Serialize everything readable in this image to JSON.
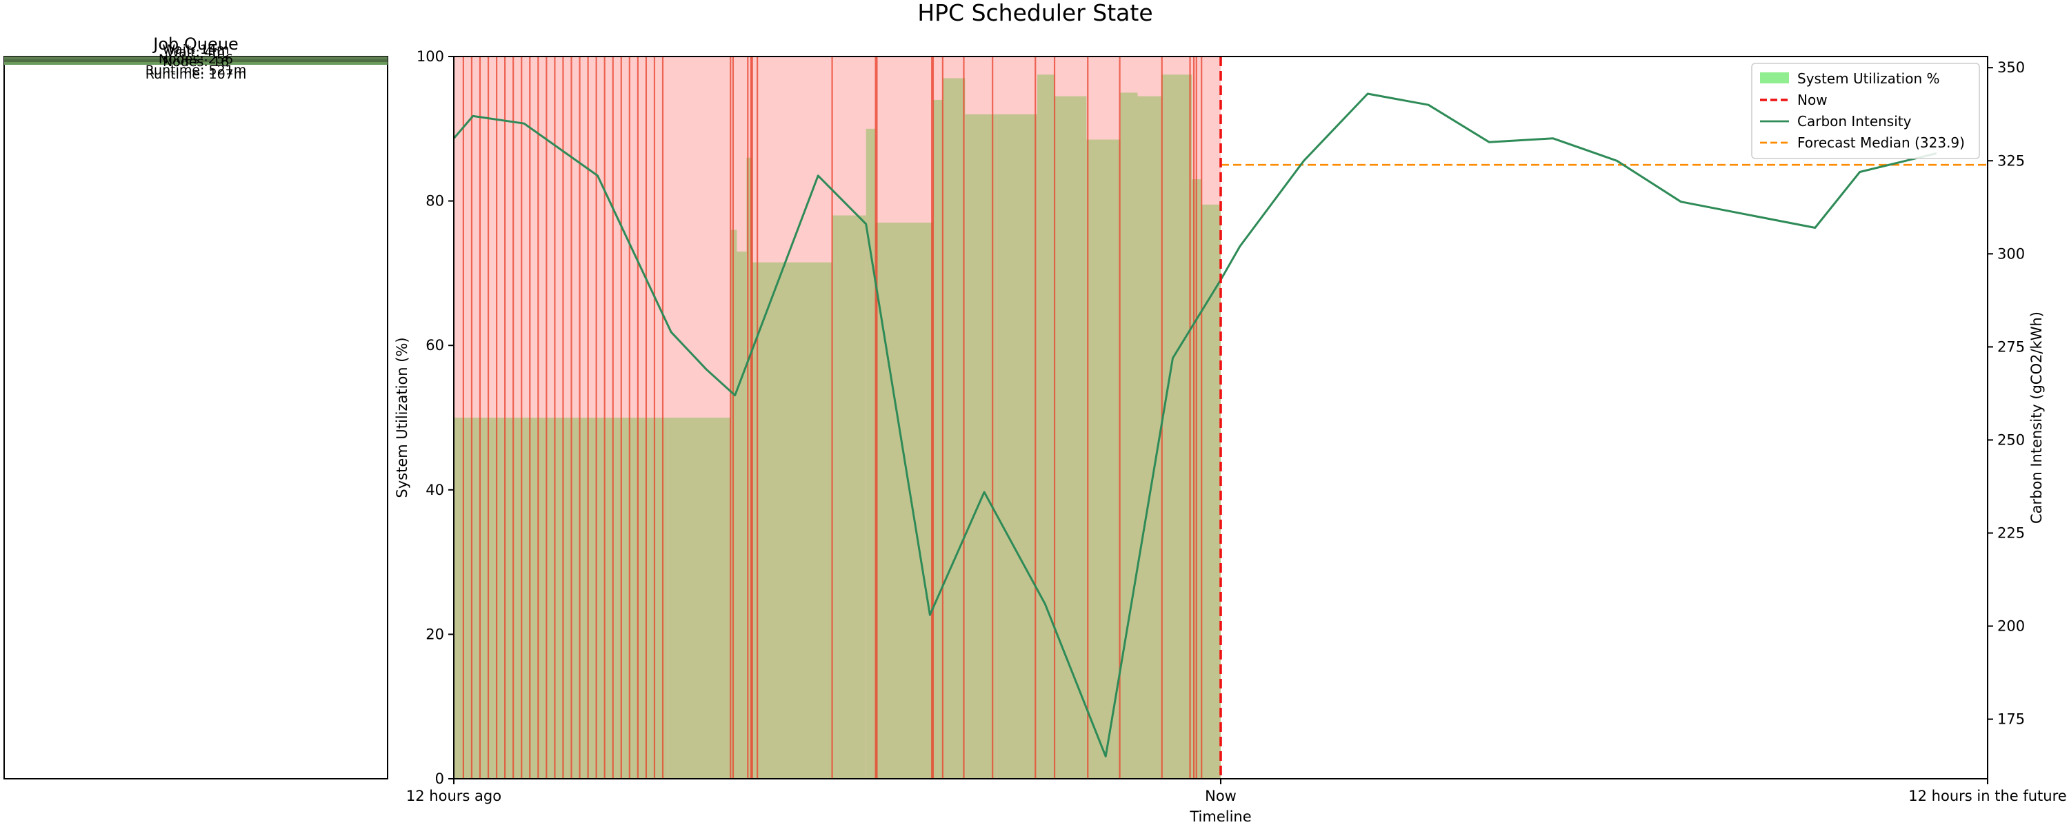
{
  "figure_title": "HPC Scheduler State",
  "queue_panel": {
    "title": "Job Queue",
    "overlapping_labels": [
      "Wait: 14m",
      "Wait: 4m",
      "Nodes: 256",
      "Nodes: 16",
      "Runtime: 521m",
      "Runtime: 107m"
    ],
    "bars": [
      {
        "color": "#5f7f52"
      },
      {
        "color": "#4f6d44"
      },
      {
        "color": "#6a9a5c"
      }
    ]
  },
  "chart_data": {
    "type": "area",
    "title": "HPC Scheduler State",
    "xlabel": "Timeline",
    "x_ticks": [
      {
        "label": "12 hours ago",
        "hours": -12
      },
      {
        "label": "Now",
        "hours": 0
      },
      {
        "label": "12 hours in the future",
        "hours": 12
      }
    ],
    "xlim_hours": [
      -12,
      12
    ],
    "y_left": {
      "label": "System Utilization (%)",
      "range": [
        0,
        100
      ],
      "ticks": [
        0,
        20,
        40,
        60,
        80,
        100
      ],
      "color": "#1a7a1a"
    },
    "y_right": {
      "label": "Carbon Intensity (gCO2/kWh)",
      "range": [
        159,
        353
      ],
      "ticks": [
        175,
        200,
        225,
        250,
        275,
        300,
        325,
        350
      ],
      "color": "#2e8b57"
    },
    "legend": {
      "position": "top-right",
      "entries": [
        {
          "label": "System Utilization %",
          "swatch": "patch",
          "color": "#90ee90"
        },
        {
          "label": "Now",
          "swatch": "dashed-line",
          "color": "#ee1111"
        },
        {
          "label": "Carbon Intensity",
          "swatch": "line",
          "color": "#2e8b57"
        },
        {
          "label": "Forecast Median (323.9)",
          "swatch": "dashed-line",
          "color": "#ff8c00"
        }
      ]
    },
    "now_line": {
      "x_hours": 0,
      "color": "#ee1111"
    },
    "forecast_median": {
      "value": 323.9,
      "x_range_hours": [
        0,
        12
      ],
      "color": "#ff8c00"
    },
    "utilization_segments": [
      {
        "start": -12.0,
        "end": -8.65,
        "value": 50
      },
      {
        "start": -8.65,
        "end": -7.67,
        "value": 50
      },
      {
        "start": -7.67,
        "end": -7.57,
        "value": 76
      },
      {
        "start": -7.57,
        "end": -7.42,
        "value": 73
      },
      {
        "start": -7.42,
        "end": -7.33,
        "value": 86
      },
      {
        "start": -7.33,
        "end": -6.08,
        "value": 71.5
      },
      {
        "start": -6.08,
        "end": -5.55,
        "value": 78
      },
      {
        "start": -5.55,
        "end": -5.4,
        "value": 90
      },
      {
        "start": -5.4,
        "end": -4.5,
        "value": 77
      },
      {
        "start": -4.5,
        "end": -4.35,
        "value": 94
      },
      {
        "start": -4.35,
        "end": -4.0,
        "value": 97
      },
      {
        "start": -4.0,
        "end": -3.5,
        "value": 92
      },
      {
        "start": -3.5,
        "end": -2.87,
        "value": 92
      },
      {
        "start": -2.87,
        "end": -2.6,
        "value": 97.5
      },
      {
        "start": -2.6,
        "end": -2.1,
        "value": 94.5
      },
      {
        "start": -2.1,
        "end": -1.57,
        "value": 88.5
      },
      {
        "start": -1.57,
        "end": -1.3,
        "value": 95
      },
      {
        "start": -1.3,
        "end": -0.93,
        "value": 94.5
      },
      {
        "start": -0.93,
        "end": -0.45,
        "value": 97.5
      },
      {
        "start": -0.45,
        "end": -0.3,
        "value": 83
      },
      {
        "start": -0.3,
        "end": 0.0,
        "value": 79.5
      }
    ],
    "series": [
      {
        "name": "Carbon Intensity",
        "points": [
          [
            -12.0,
            331
          ],
          [
            -11.7,
            337
          ],
          [
            -10.9,
            335
          ],
          [
            -9.75,
            321
          ],
          [
            -8.6,
            279
          ],
          [
            -8.05,
            269
          ],
          [
            -7.6,
            262
          ],
          [
            -6.3,
            321
          ],
          [
            -5.55,
            308
          ],
          [
            -4.55,
            203
          ],
          [
            -3.7,
            236
          ],
          [
            -2.75,
            206
          ],
          [
            -1.8,
            165
          ],
          [
            -0.75,
            272
          ],
          [
            0.0,
            293
          ],
          [
            0.3,
            302
          ],
          [
            1.3,
            325
          ],
          [
            2.3,
            343
          ],
          [
            3.25,
            340
          ],
          [
            4.2,
            330
          ],
          [
            5.2,
            331
          ],
          [
            6.2,
            325
          ],
          [
            7.2,
            314
          ],
          [
            9.3,
            307
          ],
          [
            10.0,
            322
          ],
          [
            11.2,
            327
          ]
        ]
      }
    ],
    "scheduled_job_marks_hours": [
      -11.85,
      -11.72,
      -11.59,
      -11.46,
      -11.33,
      -11.2,
      -11.07,
      -10.94,
      -10.81,
      -10.68,
      -10.55,
      -10.42,
      -10.29,
      -10.16,
      -10.03,
      -9.9,
      -9.77,
      -9.64,
      -9.51,
      -9.38,
      -9.25,
      -9.12,
      -8.99,
      -8.86,
      -8.73,
      -7.67,
      -7.63,
      -7.4,
      -7.35,
      -7.33,
      -7.25,
      -6.08,
      -5.4,
      -5.38,
      -4.52,
      -4.5,
      -4.35,
      -4.02,
      -3.57,
      -2.9,
      -2.6,
      -2.08,
      -1.58,
      -0.92,
      -0.48,
      -0.42,
      -0.38,
      -0.3
    ]
  }
}
